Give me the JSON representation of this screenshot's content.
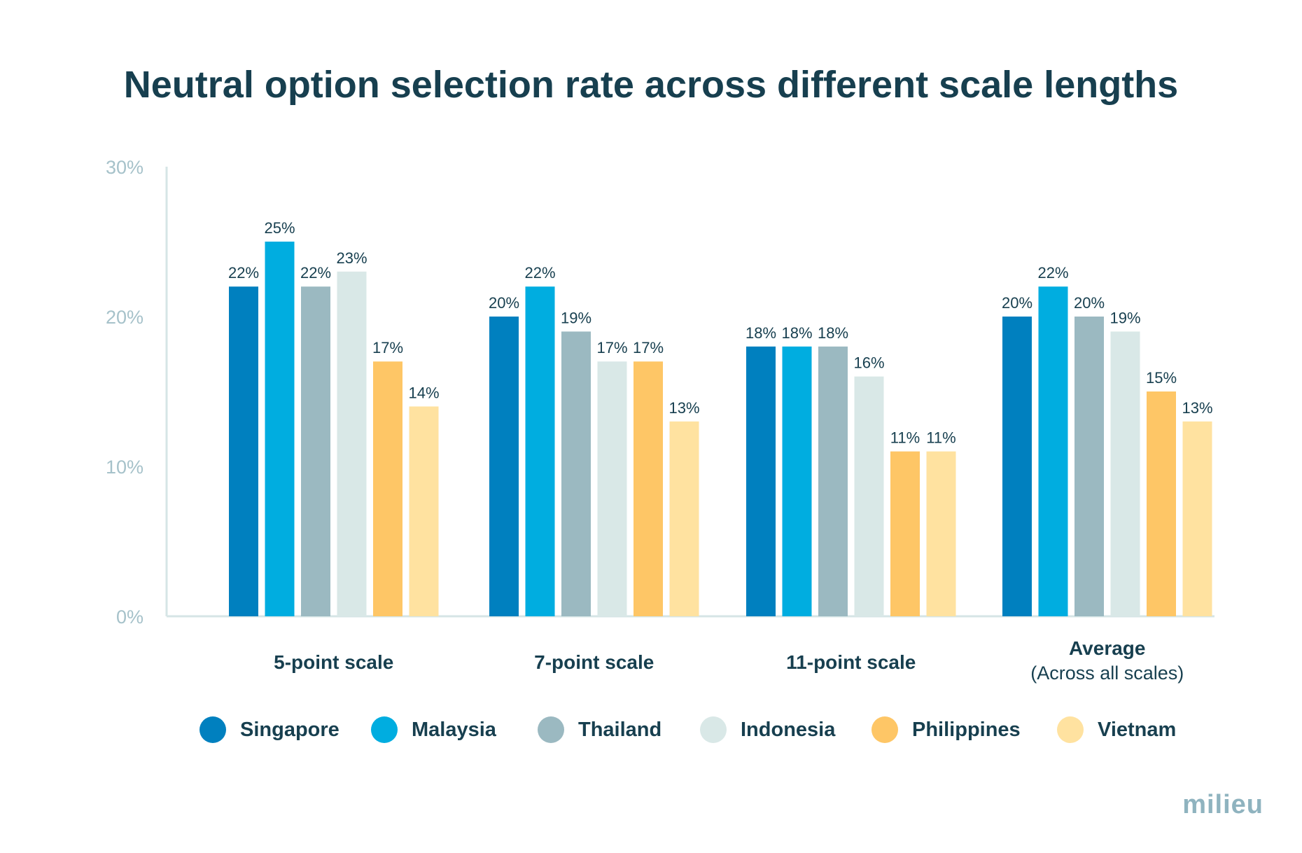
{
  "chart_data": {
    "type": "bar",
    "title": "Neutral option selection rate across different scale lengths",
    "categories": [
      "5-point scale",
      "7-point scale",
      "11-point scale",
      "Average"
    ],
    "category_sublabels": [
      "",
      "",
      "",
      "(Across all scales)"
    ],
    "ylim": [
      0,
      30
    ],
    "yticks": [
      "0%",
      "10%",
      "20%",
      "30%"
    ],
    "ytick_values": [
      0,
      10,
      20,
      30
    ],
    "grid": false,
    "legend_position": "bottom",
    "series": [
      {
        "name": "Singapore",
        "color": "#0080bf",
        "values": [
          22,
          20,
          18,
          20
        ],
        "labels": [
          "22%",
          "20%",
          "18%",
          "20%"
        ]
      },
      {
        "name": "Malaysia",
        "color": "#00ade0",
        "values": [
          25,
          22,
          18,
          22
        ],
        "labels": [
          "25%",
          "22%",
          "18%",
          "22%"
        ]
      },
      {
        "name": "Thailand",
        "color": "#9bb9c1",
        "values": [
          22,
          19,
          18,
          20
        ],
        "labels": [
          "22%",
          "19%",
          "18%",
          "20%"
        ]
      },
      {
        "name": "Indonesia",
        "color": "#d9e8e7",
        "values": [
          23,
          17,
          16,
          19
        ],
        "labels": [
          "23%",
          "17%",
          "16%",
          "19%"
        ]
      },
      {
        "name": "Philippines",
        "color": "#fec666",
        "values": [
          17,
          17,
          11,
          15
        ],
        "labels": [
          "17%",
          "17%",
          "11%",
          "15%"
        ]
      },
      {
        "name": "Vietnam",
        "color": "#ffe2a0",
        "values": [
          14,
          13,
          11,
          13
        ],
        "labels": [
          "14%",
          "13%",
          "11%",
          "13%"
        ]
      }
    ]
  },
  "brand": {
    "logo_text": "milieu"
  }
}
